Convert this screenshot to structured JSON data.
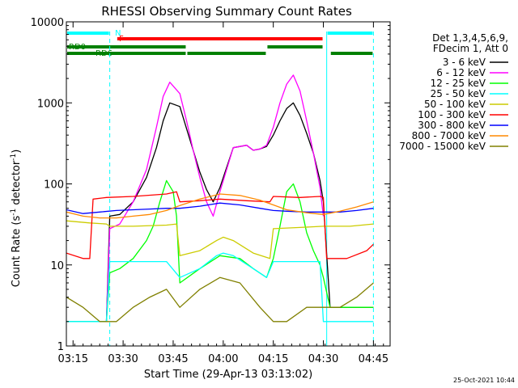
{
  "chart_data": {
    "type": "line",
    "title": "RHESSI Observing Summary Count Rates",
    "xlabel": "Start Time (29-Apr-13 03:13:02)",
    "ylabel": "Count Rate (s⁻¹ detector⁻¹)",
    "ylabel_parts": [
      "Count Rate (s",
      "-1",
      " detector",
      "-1",
      ")"
    ],
    "yscale": "log",
    "ylim": [
      1,
      10000
    ],
    "xlim_minutes": [
      0,
      97
    ],
    "x_ticks": [
      {
        "label": "03:15",
        "minute": 2
      },
      {
        "label": "03:30",
        "minute": 17
      },
      {
        "label": "03:45",
        "minute": 32
      },
      {
        "label": "04:00",
        "minute": 47
      },
      {
        "label": "04:15",
        "minute": 62
      },
      {
        "label": "04:30",
        "minute": 77
      },
      {
        "label": "04:45",
        "minute": 92
      }
    ],
    "y_ticks": [
      {
        "label": "1",
        "value": 1
      },
      {
        "label": "10",
        "value": 10
      },
      {
        "label": "100",
        "value": 100
      },
      {
        "label": "1000",
        "value": 1000
      },
      {
        "label": "10000",
        "value": 10000
      }
    ],
    "legend_position": "right",
    "legend_header": [
      "Det 1,3,4,5,6,9,",
      "FDecim 1, Att 0"
    ],
    "series": [
      {
        "name": "3 - 6 keV",
        "color": "#000000",
        "x": [
          0,
          7,
          10,
          12,
          13,
          16,
          20,
          24,
          27,
          29,
          31,
          34,
          36,
          38,
          40,
          42,
          44,
          46,
          50,
          54,
          56,
          58,
          60,
          62,
          64,
          66,
          68,
          70,
          72,
          74,
          76,
          77,
          79,
          82,
          85,
          88,
          92
        ],
        "y": [
          2,
          2,
          2,
          2,
          40,
          42,
          60,
          120,
          280,
          600,
          1000,
          900,
          480,
          260,
          140,
          85,
          60,
          90,
          280,
          300,
          260,
          270,
          290,
          400,
          600,
          850,
          1000,
          700,
          420,
          240,
          110,
          60,
          3,
          3,
          3,
          3,
          3
        ]
      },
      {
        "name": "6 - 12 keV",
        "color": "#ff00ff",
        "x": [
          0,
          7,
          10,
          12,
          13,
          16,
          20,
          24,
          27,
          29,
          31,
          34,
          36,
          38,
          40,
          42,
          44,
          46,
          50,
          54,
          56,
          58,
          60,
          62,
          64,
          66,
          68,
          70,
          72,
          74,
          76,
          77
        ],
        "y": [
          2,
          2,
          2,
          2,
          28,
          32,
          60,
          150,
          500,
          1200,
          1800,
          1300,
          600,
          260,
          120,
          60,
          40,
          80,
          280,
          300,
          260,
          270,
          300,
          500,
          1000,
          1700,
          2200,
          1400,
          600,
          240,
          90,
          40
        ]
      },
      {
        "name": "12 - 25 keV",
        "color": "#00ff00",
        "x": [
          0,
          7,
          10,
          12,
          13,
          16,
          20,
          24,
          26,
          28,
          30,
          32,
          33,
          34,
          40,
          46,
          52,
          56,
          60,
          62,
          64,
          66,
          68,
          70,
          72,
          74,
          76,
          77,
          79,
          92
        ],
        "y": [
          2,
          2,
          2,
          2,
          8,
          9,
          12,
          20,
          30,
          60,
          110,
          80,
          40,
          6,
          9,
          13,
          12,
          9,
          7,
          12,
          30,
          80,
          100,
          60,
          25,
          15,
          10,
          7,
          3,
          3
        ]
      },
      {
        "name": "25 - 50 keV",
        "color": "#00ffff",
        "x": [
          0,
          7,
          12,
          13,
          20,
          30,
          34,
          40,
          45,
          47,
          50,
          56,
          60,
          62,
          66,
          70,
          76,
          77,
          79,
          85,
          92
        ],
        "y": [
          2,
          2,
          2,
          11,
          11,
          11,
          7,
          9,
          13,
          14,
          13,
          9,
          7,
          11,
          11,
          11,
          11,
          2,
          2,
          2,
          2
        ]
      },
      {
        "name": "50 - 100 keV",
        "color": "#cccc00",
        "x": [
          0,
          7,
          12,
          13,
          20,
          30,
          33,
          34,
          40,
          45,
          47,
          50,
          56,
          61,
          62,
          70,
          77,
          78,
          85,
          92
        ],
        "y": [
          35,
          33,
          32,
          30,
          30,
          31,
          32,
          13,
          15,
          20,
          22,
          20,
          14,
          12,
          28,
          29,
          30,
          30,
          30,
          32
        ]
      },
      {
        "name": "100 - 300 keV",
        "color": "#ff0000",
        "x": [
          0,
          5,
          7,
          8,
          12,
          20,
          30,
          33,
          34,
          40,
          46,
          54,
          61,
          62,
          70,
          76,
          77,
          78,
          84,
          90,
          92
        ],
        "y": [
          14,
          12,
          12,
          65,
          68,
          70,
          75,
          80,
          60,
          62,
          65,
          62,
          60,
          70,
          68,
          70,
          68,
          12,
          12,
          15,
          18
        ]
      },
      {
        "name": "300 - 800 keV",
        "color": "#0000ff",
        "x": [
          0,
          5,
          10,
          15,
          20,
          25,
          30,
          34,
          40,
          46,
          52,
          58,
          62,
          66,
          72,
          77,
          82,
          87,
          92
        ],
        "y": [
          48,
          43,
          45,
          47,
          48,
          49,
          50,
          50,
          53,
          58,
          55,
          50,
          47,
          46,
          45,
          45,
          45,
          47,
          50
        ]
      },
      {
        "name": "800 - 7000 keV",
        "color": "#ff8800",
        "x": [
          0,
          5,
          10,
          15,
          20,
          25,
          30,
          34,
          40,
          46,
          52,
          58,
          62,
          66,
          72,
          77,
          82,
          87,
          92
        ],
        "y": [
          45,
          40,
          38,
          38,
          40,
          42,
          47,
          54,
          65,
          75,
          72,
          63,
          55,
          48,
          44,
          42,
          46,
          52,
          60
        ]
      },
      {
        "name": "7000 - 15000 keV",
        "color": "#808000",
        "x": [
          0,
          5,
          10,
          15,
          20,
          25,
          30,
          34,
          40,
          46,
          52,
          58,
          62,
          66,
          72,
          77,
          82,
          87,
          92
        ],
        "y": [
          4,
          3,
          2,
          2,
          3,
          4,
          5,
          3,
          5,
          7,
          6,
          3,
          2,
          2,
          3,
          3,
          3,
          4,
          6
        ]
      }
    ],
    "status_bars": [
      {
        "label": "N",
        "label_color": "#00ffff",
        "color": "#00ffff",
        "level": 1,
        "segments": [
          [
            0,
            13
          ],
          [
            78,
            92
          ]
        ]
      },
      {
        "label": "F",
        "label_color": "#ff0000",
        "color": "#ff0000",
        "level": 2,
        "segments": [
          [
            15,
            77
          ]
        ]
      },
      {
        "label": "RD0",
        "label_color": "#008000",
        "color": "#008000",
        "level": 3,
        "segments": [
          [
            0,
            36
          ],
          [
            60,
            77
          ]
        ]
      },
      {
        "label": "RD6",
        "label_color": "#008000",
        "color": "#008000",
        "level": 4,
        "segments": [
          [
            0,
            36
          ],
          [
            36,
            60
          ],
          [
            79,
            92
          ]
        ]
      }
    ],
    "night_markers": [
      {
        "minute": 0,
        "style": "solid"
      },
      {
        "minute": 13,
        "style": "dashed"
      },
      {
        "minute": 78,
        "style": "solid"
      },
      {
        "minute": 92,
        "style": "dashed"
      }
    ]
  },
  "footer_date": "25-Oct-2021 10:44"
}
